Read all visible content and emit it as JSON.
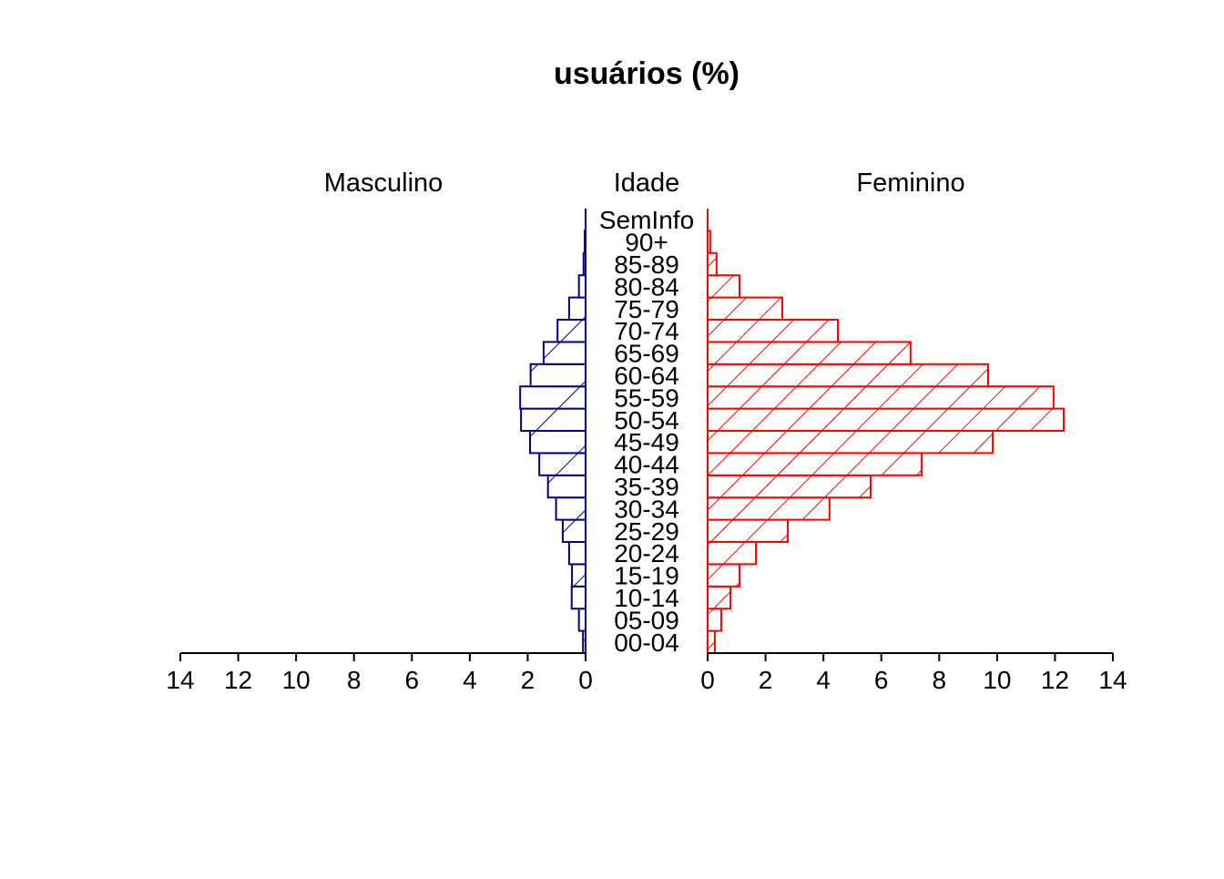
{
  "chart_data": {
    "type": "bar",
    "subtype": "population-pyramid",
    "title": "usuários (%)",
    "left_label": "Masculino",
    "center_label": "Idade",
    "right_label": "Feminino",
    "categories": [
      "00-04",
      "05-09",
      "10-14",
      "15-19",
      "20-24",
      "25-29",
      "30-34",
      "35-39",
      "40-44",
      "45-49",
      "50-54",
      "55-59",
      "60-64",
      "65-69",
      "70-74",
      "75-79",
      "80-84",
      "85-89",
      "90+",
      "SemInfo"
    ],
    "series": [
      {
        "name": "Masculino",
        "color": "#000080",
        "hatched": true,
        "values": [
          0.09,
          0.23,
          0.48,
          0.47,
          0.57,
          0.79,
          1.02,
          1.3,
          1.6,
          1.92,
          2.23,
          2.26,
          1.9,
          1.45,
          0.97,
          0.57,
          0.23,
          0.07,
          0.03,
          0
        ]
      },
      {
        "name": "Feminino",
        "color": "#ff0000",
        "hatched": true,
        "values": [
          0.25,
          0.47,
          0.79,
          1.1,
          1.67,
          2.77,
          4.21,
          5.63,
          7.39,
          9.85,
          12.3,
          11.95,
          9.69,
          7.01,
          4.5,
          2.58,
          1.1,
          0.31,
          0.09,
          0
        ]
      }
    ],
    "xlim": [
      0,
      14
    ],
    "xticks": [
      0,
      2,
      4,
      6,
      8,
      10,
      12,
      14
    ],
    "grid": false
  }
}
